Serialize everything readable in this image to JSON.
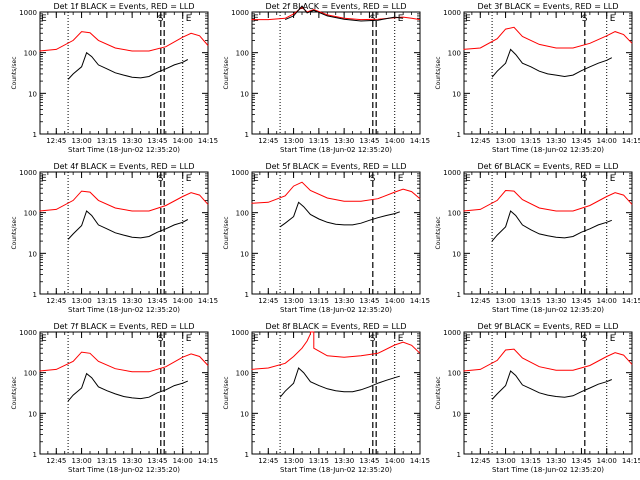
{
  "figure": {
    "xlabel": "Start Time (18-Jun-02 12:35:20)",
    "ylabel": "Counts/sec",
    "x_ticks": [
      "12:45",
      "13:00",
      "13:15",
      "13:30",
      "13:45",
      "14:00",
      "14:15"
    ],
    "y_ticks": [
      "1",
      "10",
      "100",
      "1000"
    ],
    "markers": {
      "left": "E",
      "mid": "S",
      "right": "E"
    }
  },
  "colors": {
    "events": "#000000",
    "lld": "#ff0000"
  },
  "chart_data": [
    {
      "type": "line",
      "title": "Det 1f BLACK = Events, RED = LLD",
      "yscale": "log",
      "ylim": [
        1,
        1000
      ],
      "xlim": [
        "12:35:20",
        "14:15"
      ],
      "vlines": {
        "dotted": [
          "12:52",
          "14:00"
        ],
        "dashed": [
          "13:47",
          "13:49"
        ]
      },
      "series": [
        {
          "key": "lld",
          "x": [
            "12:35",
            "12:45",
            "12:55",
            "13:00",
            "13:05",
            "13:10",
            "13:20",
            "13:30",
            "13:40",
            "13:50",
            "14:00",
            "14:05",
            "14:10",
            "14:15"
          ],
          "values": [
            110,
            120,
            200,
            330,
            310,
            200,
            130,
            110,
            110,
            140,
            240,
            300,
            260,
            150
          ]
        },
        {
          "key": "events",
          "x": [
            "12:52",
            "12:55",
            "13:00",
            "13:03",
            "13:06",
            "13:10",
            "13:15",
            "13:20",
            "13:25",
            "13:30",
            "13:35",
            "13:40",
            "13:45",
            "13:50",
            "13:55",
            "14:00",
            "14:03"
          ],
          "values": [
            22,
            30,
            45,
            100,
            80,
            50,
            40,
            32,
            28,
            25,
            24,
            26,
            33,
            40,
            50,
            58,
            68
          ]
        }
      ]
    },
    {
      "type": "line",
      "title": "Det 2f BLACK = Events, RED = LLD",
      "yscale": "log",
      "ylim": [
        1,
        1000
      ],
      "xlim": [
        "12:35:20",
        "14:15"
      ],
      "vlines": {
        "dotted": [
          "12:52",
          "14:00"
        ],
        "dashed": [
          "13:47",
          "13:49"
        ]
      },
      "series": [
        {
          "key": "lld",
          "x": [
            "12:35",
            "12:45",
            "12:55",
            "13:00",
            "13:05",
            "13:08",
            "13:12",
            "13:20",
            "13:30",
            "13:40",
            "13:50",
            "14:00",
            "14:05",
            "14:10",
            "14:15"
          ],
          "values": [
            650,
            650,
            700,
            900,
            1300,
            1000,
            1150,
            850,
            700,
            650,
            660,
            720,
            750,
            700,
            650
          ]
        },
        {
          "key": "events",
          "x": [
            "12:55",
            "13:00",
            "13:05",
            "13:08",
            "13:12",
            "13:20",
            "13:30",
            "13:40",
            "13:50",
            "14:00",
            "14:05"
          ],
          "values": [
            650,
            800,
            1400,
            950,
            1100,
            800,
            660,
            600,
            630,
            750,
            700
          ]
        }
      ]
    },
    {
      "type": "line",
      "title": "Det 3f BLACK = Events, RED = LLD",
      "yscale": "log",
      "ylim": [
        1,
        1000
      ],
      "xlim": [
        "12:35:20",
        "14:15"
      ],
      "vlines": {
        "dotted": [
          "12:52",
          "14:00"
        ],
        "dashed": [
          "13:47"
        ]
      },
      "series": [
        {
          "key": "lld",
          "x": [
            "12:35",
            "12:45",
            "12:55",
            "13:00",
            "13:05",
            "13:10",
            "13:20",
            "13:30",
            "13:40",
            "13:50",
            "14:00",
            "14:05",
            "14:10",
            "14:15"
          ],
          "values": [
            120,
            130,
            220,
            380,
            420,
            250,
            160,
            130,
            130,
            170,
            260,
            330,
            280,
            170
          ]
        },
        {
          "key": "events",
          "x": [
            "12:52",
            "12:55",
            "13:00",
            "13:03",
            "13:06",
            "13:10",
            "13:15",
            "13:20",
            "13:25",
            "13:30",
            "13:35",
            "13:40",
            "13:45",
            "13:50",
            "13:55",
            "14:00",
            "14:03"
          ],
          "values": [
            25,
            35,
            55,
            120,
            90,
            55,
            45,
            35,
            30,
            28,
            26,
            28,
            36,
            45,
            55,
            65,
            75
          ]
        }
      ]
    },
    {
      "type": "line",
      "title": "Det 4f BLACK = Events, RED = LLD",
      "yscale": "log",
      "ylim": [
        1,
        1000
      ],
      "xlim": [
        "12:35:20",
        "14:15"
      ],
      "vlines": {
        "dotted": [
          "12:52",
          "14:00"
        ],
        "dashed": [
          "13:47",
          "13:49"
        ]
      },
      "series": [
        {
          "key": "lld",
          "x": [
            "12:35",
            "12:45",
            "12:55",
            "13:00",
            "13:05",
            "13:10",
            "13:20",
            "13:30",
            "13:40",
            "13:50",
            "14:00",
            "14:05",
            "14:10",
            "14:15"
          ],
          "values": [
            110,
            120,
            200,
            340,
            320,
            200,
            130,
            110,
            110,
            150,
            250,
            310,
            270,
            160
          ]
        },
        {
          "key": "events",
          "x": [
            "12:52",
            "12:55",
            "13:00",
            "13:03",
            "13:06",
            "13:10",
            "13:15",
            "13:20",
            "13:25",
            "13:30",
            "13:35",
            "13:40",
            "13:45",
            "13:50",
            "13:55",
            "14:00",
            "14:03"
          ],
          "values": [
            22,
            30,
            48,
            110,
            85,
            50,
            40,
            32,
            28,
            25,
            24,
            26,
            33,
            40,
            50,
            58,
            68
          ]
        }
      ]
    },
    {
      "type": "line",
      "title": "Det 5f BLACK = Events, RED = LLD",
      "yscale": "log",
      "ylim": [
        1,
        1000
      ],
      "xlim": [
        "12:35:20",
        "14:15"
      ],
      "vlines": {
        "dotted": [
          "12:52",
          "14:00"
        ],
        "dashed": [
          "13:47"
        ]
      },
      "series": [
        {
          "key": "lld",
          "x": [
            "12:35",
            "12:45",
            "12:55",
            "13:00",
            "13:05",
            "13:10",
            "13:20",
            "13:30",
            "13:40",
            "13:50",
            "14:00",
            "14:05",
            "14:10",
            "14:15"
          ],
          "values": [
            170,
            180,
            260,
            450,
            560,
            350,
            230,
            190,
            190,
            220,
            320,
            380,
            330,
            220
          ]
        },
        {
          "key": "events",
          "x": [
            "12:52",
            "12:55",
            "13:00",
            "13:03",
            "13:06",
            "13:10",
            "13:15",
            "13:20",
            "13:25",
            "13:30",
            "13:35",
            "13:40",
            "13:45",
            "13:50",
            "13:55",
            "14:00",
            "14:03"
          ],
          "values": [
            45,
            55,
            80,
            180,
            140,
            90,
            70,
            58,
            52,
            50,
            50,
            55,
            65,
            75,
            85,
            95,
            105
          ]
        }
      ]
    },
    {
      "type": "line",
      "title": "Det 6f BLACK = Events, RED = LLD",
      "yscale": "log",
      "ylim": [
        1,
        1000
      ],
      "xlim": [
        "12:35:20",
        "14:15"
      ],
      "vlines": {
        "dotted": [
          "12:52",
          "14:00"
        ],
        "dashed": [
          "13:47"
        ]
      },
      "series": [
        {
          "key": "lld",
          "x": [
            "12:35",
            "12:45",
            "12:55",
            "13:00",
            "13:05",
            "13:10",
            "13:20",
            "13:30",
            "13:40",
            "13:50",
            "14:00",
            "14:05",
            "14:10",
            "14:15"
          ],
          "values": [
            110,
            120,
            200,
            350,
            340,
            210,
            130,
            110,
            110,
            150,
            250,
            310,
            270,
            160
          ]
        },
        {
          "key": "events",
          "x": [
            "12:52",
            "12:55",
            "13:00",
            "13:03",
            "13:06",
            "13:10",
            "13:15",
            "13:20",
            "13:25",
            "13:30",
            "13:35",
            "13:40",
            "13:45",
            "13:50",
            "13:55",
            "14:00",
            "14:03"
          ],
          "values": [
            20,
            28,
            45,
            110,
            85,
            50,
            38,
            30,
            27,
            25,
            24,
            26,
            33,
            40,
            50,
            58,
            65
          ]
        }
      ]
    },
    {
      "type": "line",
      "title": "Det 7f BLACK = Events, RED = LLD",
      "yscale": "log",
      "ylim": [
        1,
        1000
      ],
      "xlim": [
        "12:35:20",
        "14:15"
      ],
      "vlines": {
        "dotted": [
          "12:52",
          "14:00"
        ],
        "dashed": [
          "13:47",
          "13:49"
        ]
      },
      "series": [
        {
          "key": "lld",
          "x": [
            "12:35",
            "12:45",
            "12:55",
            "13:00",
            "13:05",
            "13:10",
            "13:20",
            "13:30",
            "13:40",
            "13:50",
            "14:00",
            "14:05",
            "14:10",
            "14:15"
          ],
          "values": [
            110,
            120,
            190,
            320,
            300,
            190,
            125,
            105,
            105,
            140,
            240,
            290,
            250,
            150
          ]
        },
        {
          "key": "events",
          "x": [
            "12:52",
            "12:55",
            "13:00",
            "13:03",
            "13:06",
            "13:10",
            "13:15",
            "13:20",
            "13:25",
            "13:30",
            "13:35",
            "13:40",
            "13:45",
            "13:50",
            "13:55",
            "14:00",
            "14:03"
          ],
          "values": [
            20,
            28,
            42,
            95,
            75,
            45,
            36,
            30,
            26,
            24,
            23,
            25,
            32,
            38,
            48,
            55,
            62
          ]
        }
      ]
    },
    {
      "type": "line",
      "title": "Det 8f BLACK = Events, RED = LLD",
      "yscale": "log",
      "ylim": [
        1,
        1000
      ],
      "xlim": [
        "12:35:20",
        "14:15"
      ],
      "vlines": {
        "dotted": [
          "12:52",
          "14:00"
        ],
        "dashed": [
          "13:47",
          "13:49"
        ]
      },
      "series": [
        {
          "key": "lld",
          "x": [
            "12:35",
            "12:45",
            "12:55",
            "13:00",
            "13:05",
            "13:08",
            "13:10",
            "13:10",
            "13:12",
            "13:12",
            "13:20",
            "13:30",
            "13:40",
            "13:50",
            "14:00",
            "14:05",
            "14:10",
            "14:15"
          ],
          "values": [
            120,
            130,
            170,
            250,
            400,
            600,
            900,
            1000,
            1000,
            400,
            260,
            240,
            260,
            300,
            480,
            560,
            470,
            300
          ]
        },
        {
          "key": "events",
          "x": [
            "12:52",
            "12:55",
            "13:00",
            "13:03",
            "13:06",
            "13:10",
            "13:15",
            "13:20",
            "13:25",
            "13:30",
            "13:35",
            "13:40",
            "13:45",
            "13:50",
            "13:55",
            "14:00",
            "14:03"
          ],
          "values": [
            25,
            35,
            55,
            130,
            100,
            60,
            48,
            40,
            36,
            34,
            34,
            38,
            45,
            55,
            65,
            75,
            82
          ]
        }
      ]
    },
    {
      "type": "line",
      "title": "Det 9f BLACK = Events, RED = LLD",
      "yscale": "log",
      "ylim": [
        1,
        1000
      ],
      "xlim": [
        "12:35:20",
        "14:15"
      ],
      "vlines": {
        "dotted": [
          "12:52",
          "14:00"
        ],
        "dashed": [
          "13:47"
        ]
      },
      "series": [
        {
          "key": "lld",
          "x": [
            "12:35",
            "12:45",
            "12:55",
            "13:00",
            "13:05",
            "13:10",
            "13:20",
            "13:30",
            "13:40",
            "13:50",
            "14:00",
            "14:05",
            "14:10",
            "14:15"
          ],
          "values": [
            110,
            120,
            200,
            360,
            380,
            230,
            140,
            115,
            115,
            150,
            250,
            310,
            270,
            160
          ]
        },
        {
          "key": "events",
          "x": [
            "12:52",
            "12:55",
            "13:00",
            "13:03",
            "13:06",
            "13:10",
            "13:15",
            "13:20",
            "13:25",
            "13:30",
            "13:35",
            "13:40",
            "13:45",
            "13:50",
            "13:55",
            "14:00",
            "14:03"
          ],
          "values": [
            22,
            30,
            48,
            110,
            85,
            50,
            40,
            32,
            28,
            26,
            25,
            27,
            34,
            42,
            52,
            60,
            68
          ]
        }
      ]
    }
  ]
}
